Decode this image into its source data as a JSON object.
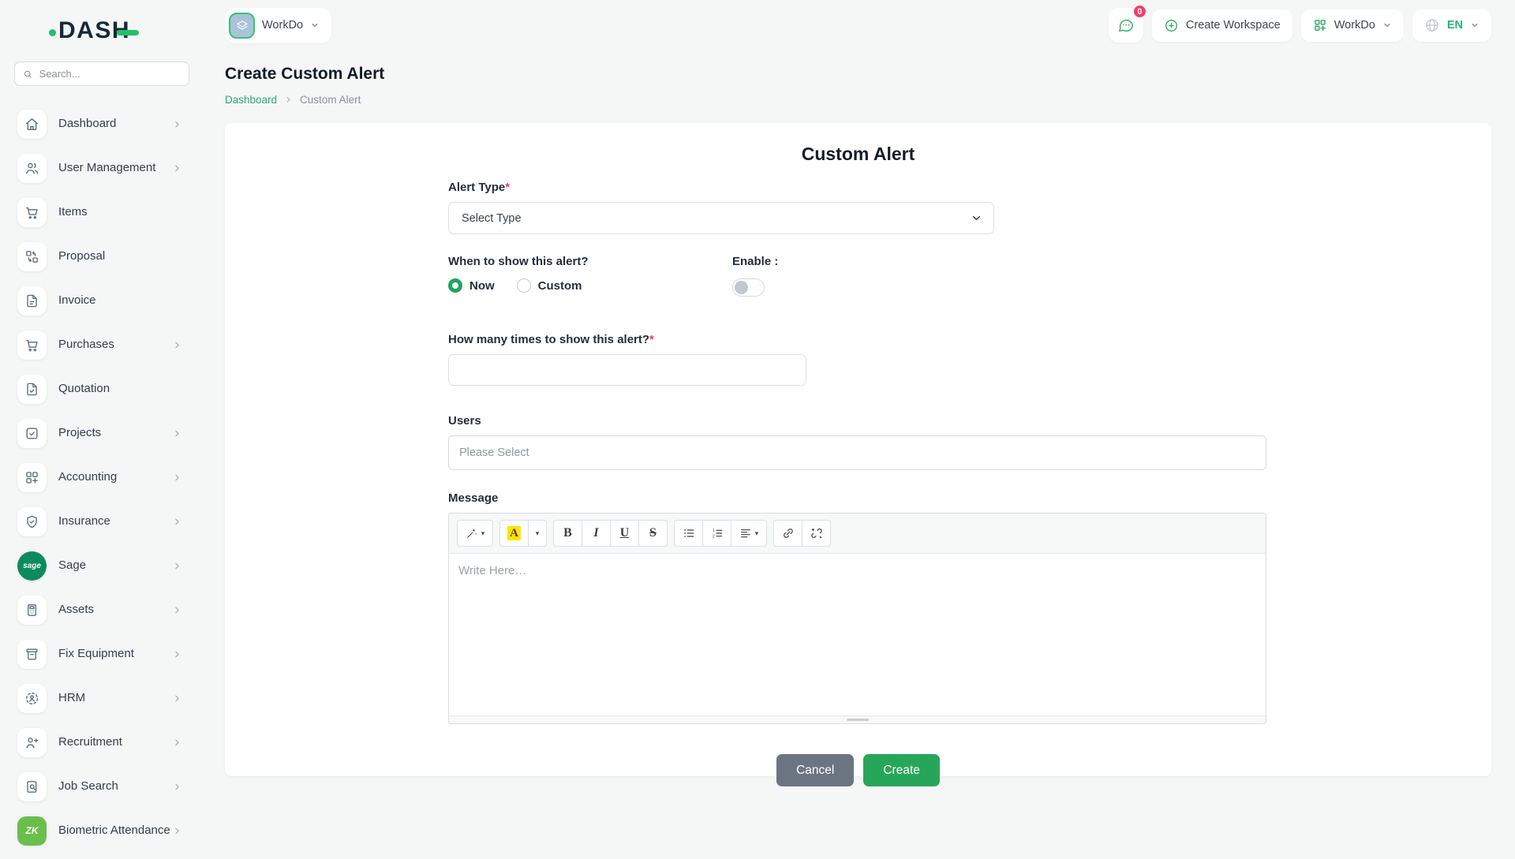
{
  "app": {
    "logo_text": "DASH"
  },
  "sidebar": {
    "search_placeholder": "Search...",
    "items": [
      {
        "label": "Dashboard",
        "icon": "home-icon",
        "chevron": true
      },
      {
        "label": "User Management",
        "icon": "users-icon",
        "chevron": true
      },
      {
        "label": "Items",
        "icon": "cart-icon",
        "chevron": false
      },
      {
        "label": "Proposal",
        "icon": "proposal-icon",
        "chevron": false
      },
      {
        "label": "Invoice",
        "icon": "invoice-icon",
        "chevron": false
      },
      {
        "label": "Purchases",
        "icon": "purchases-icon",
        "chevron": true
      },
      {
        "label": "Quotation",
        "icon": "quotation-icon",
        "chevron": false
      },
      {
        "label": "Projects",
        "icon": "projects-icon",
        "chevron": true
      },
      {
        "label": "Accounting",
        "icon": "accounting-icon",
        "chevron": true
      },
      {
        "label": "Insurance",
        "icon": "insurance-icon",
        "chevron": true
      },
      {
        "label": "Sage",
        "icon": "sage-icon",
        "chevron": true,
        "badge": {
          "text": "sage",
          "bg": "#0e8a5f",
          "shape": "circle"
        }
      },
      {
        "label": "Assets",
        "icon": "assets-icon",
        "chevron": true
      },
      {
        "label": "Fix Equipment",
        "icon": "fix-equipment-icon",
        "chevron": true
      },
      {
        "label": "HRM",
        "icon": "hrm-icon",
        "chevron": true
      },
      {
        "label": "Recruitment",
        "icon": "recruitment-icon",
        "chevron": true
      },
      {
        "label": "Job Search",
        "icon": "job-search-icon",
        "chevron": true
      },
      {
        "label": "Biometric Attendance",
        "icon": "zk-icon",
        "chevron": true,
        "badge": {
          "text": "ZK",
          "bg": "#6abf4b",
          "shape": "rounded"
        }
      }
    ]
  },
  "header": {
    "workspace": {
      "label": "WorkDo"
    },
    "notification_badge": "0",
    "create_workspace_label": "Create Workspace",
    "user_menu": {
      "label": "WorkDo"
    },
    "language": "EN"
  },
  "page": {
    "title": "Create Custom Alert",
    "breadcrumb": {
      "home": "Dashboard",
      "current": "Custom Alert"
    }
  },
  "form": {
    "heading": "Custom Alert",
    "alert_type": {
      "label": "Alert Type",
      "required": "*",
      "value": "Select Type"
    },
    "when": {
      "label": "When to show this alert?",
      "options": [
        {
          "label": "Now",
          "selected": true
        },
        {
          "label": "Custom",
          "selected": false
        }
      ]
    },
    "enable": {
      "label": "Enable :",
      "on": false
    },
    "times": {
      "label": "How many times to show this alert?",
      "required": "*",
      "value": ""
    },
    "users": {
      "label": "Users",
      "placeholder": "Please Select"
    },
    "message": {
      "label": "Message",
      "placeholder": "Write Here…",
      "toolbar": {
        "color_glyph": "A",
        "bold_glyph": "B",
        "italic_glyph": "I",
        "underline_glyph": "U",
        "strike_glyph": "S"
      }
    },
    "buttons": {
      "cancel": "Cancel",
      "create": "Create"
    }
  },
  "colors": {
    "accent_green": "#27a65a",
    "link_green": "#2ca87c",
    "badge_pink": "#f43a6a",
    "required_red": "#f5365c",
    "sage_green": "#0e8a5f",
    "zk_green": "#6abf4b",
    "highlight_yellow": "#ffe500",
    "cancel_gray": "#6b7582"
  }
}
